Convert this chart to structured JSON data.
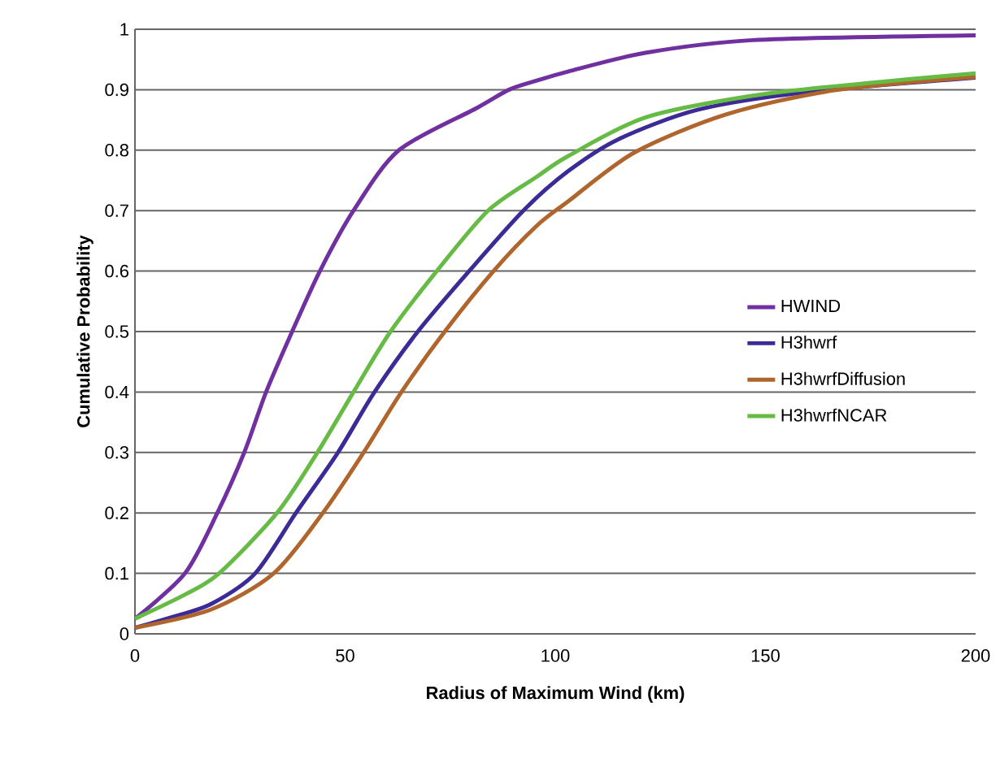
{
  "chart_data": {
    "type": "line",
    "xlabel": "Radius of Maximum Wind (km)",
    "ylabel": "Cumulative Probability",
    "xlim": [
      0,
      200
    ],
    "ylim": [
      0,
      1
    ],
    "xticks": [
      0,
      50,
      100,
      150,
      200
    ],
    "yticks": [
      0,
      0.1,
      0.2,
      0.3,
      0.4,
      0.5,
      0.6,
      0.7,
      0.8,
      0.9,
      1
    ],
    "grid": "y",
    "legend": "right",
    "marker": "none",
    "line_style": "solid",
    "series": [
      {
        "name": "HWIND",
        "color": "#7030a0",
        "x": [
          0,
          11.9,
          19.6,
          26,
          31.2,
          37.4,
          44,
          52,
          62.8,
          81.4,
          89,
          95.6,
          103,
          121.4,
          147,
          200
        ],
        "values": [
          0.025,
          0.1,
          0.2,
          0.3,
          0.4,
          0.5,
          0.6,
          0.7,
          0.8,
          0.87,
          0.9,
          0.915,
          0.93,
          0.961,
          0.982,
          0.99
        ]
      },
      {
        "name": "H3hwrf",
        "color": "#3c2a96",
        "x": [
          0,
          10,
          18.3,
          28.6,
          38.3,
          48.3,
          57,
          67.3,
          79.5,
          92.4,
          103,
          115,
          134,
          160,
          200
        ],
        "values": [
          0.01,
          0.03,
          0.05,
          0.1,
          0.2,
          0.3,
          0.4,
          0.5,
          0.6,
          0.7,
          0.765,
          0.818,
          0.867,
          0.896,
          0.92
        ]
      },
      {
        "name": "H3hwrfDiffusion",
        "color": "#b0652c",
        "x": [
          0,
          18,
          33,
          44.7,
          54.4,
          63.4,
          73.7,
          85.3,
          95.6,
          103,
          118.8,
          140.6,
          166.4,
          200
        ],
        "values": [
          0.01,
          0.04,
          0.1,
          0.2,
          0.3,
          0.4,
          0.5,
          0.6,
          0.675,
          0.715,
          0.796,
          0.859,
          0.899,
          0.921
        ]
      },
      {
        "name": "H3hwrfNCAR",
        "color": "#66bb44",
        "x": [
          0,
          11.9,
          20,
          33.8,
          43.4,
          52,
          60.8,
          71.8,
          84,
          95.6,
          103,
          121.4,
          147,
          172.9,
          200
        ],
        "values": [
          0.025,
          0.065,
          0.1,
          0.2,
          0.3,
          0.4,
          0.5,
          0.6,
          0.7,
          0.756,
          0.79,
          0.854,
          0.89,
          0.91,
          0.927
        ]
      }
    ]
  }
}
